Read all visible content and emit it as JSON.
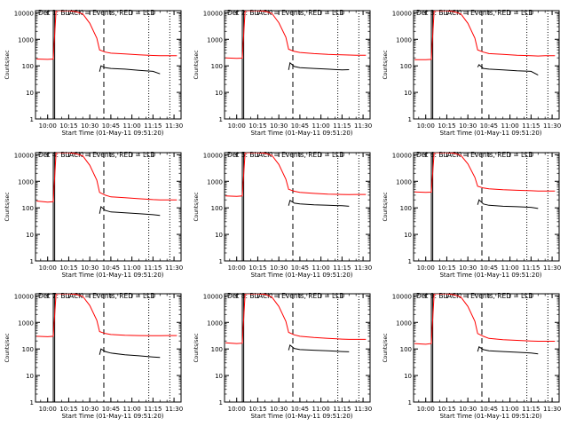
{
  "chart_data": {
    "type": "line",
    "yscale": "log",
    "ylim": [
      1,
      12000
    ],
    "ytick_labels": [
      "1",
      "10",
      "100",
      "1000",
      "10000"
    ],
    "ylabel": "Counts/sec",
    "xlabel": "Start Time (01-May-11 09:51:20)",
    "xtick_labels": [
      "10:00",
      "10:15",
      "10:30",
      "10:45",
      "11:00",
      "11:15",
      "11:30"
    ],
    "xlim": [
      "09:51:20",
      "11:35"
    ],
    "colors": {
      "events": "#000000",
      "lld": "#ff0000"
    },
    "panels": [
      {
        "title": "Det 1: BLACK = Events, RED = LLD",
        "series": [
          {
            "color": "lld",
            "x": [
              "09:52",
              "10:00",
              "10:04",
              "10:06",
              "10:10",
              "10:15",
              "10:20",
              "10:25",
              "10:30",
              "10:35",
              "10:37",
              "10:41",
              "10:45",
              "10:55",
              "11:05",
              "11:15",
              "11:20",
              "11:25",
              "11:32"
            ],
            "y": [
              180,
              175,
              180,
              12000,
              12000,
              12000,
              11000,
              9000,
              4000,
              1100,
              400,
              330,
              300,
              280,
              260,
              245,
              240,
              240,
              240
            ]
          },
          {
            "color": "events",
            "x": [
              "10:37",
              "10:38",
              "10:41",
              "10:45",
              "10:55",
              "11:05",
              "11:15",
              "11:20"
            ],
            "y": [
              60,
              100,
              85,
              80,
              75,
              68,
              62,
              50
            ]
          }
        ]
      },
      {
        "title": "Det 2: BLACK = Events, RED = LLD",
        "series": [
          {
            "color": "lld",
            "x": [
              "09:52",
              "10:00",
              "10:04",
              "10:06",
              "10:10",
              "10:15",
              "10:20",
              "10:25",
              "10:30",
              "10:35",
              "10:37",
              "10:41",
              "10:45",
              "10:55",
              "11:05",
              "11:15",
              "11:20",
              "11:25",
              "11:32"
            ],
            "y": [
              200,
              190,
              195,
              12000,
              12000,
              12000,
              11500,
              9500,
              4200,
              1200,
              420,
              350,
              320,
              290,
              270,
              260,
              255,
              250,
              250
            ]
          },
          {
            "color": "events",
            "x": [
              "10:37",
              "10:38",
              "10:41",
              "10:45",
              "10:55",
              "11:05",
              "11:15",
              "11:20"
            ],
            "y": [
              70,
              130,
              95,
              85,
              80,
              75,
              70,
              72
            ]
          }
        ]
      },
      {
        "title": "Det 3: BLACK = Events, RED = LLD",
        "series": [
          {
            "color": "lld",
            "x": [
              "09:52",
              "10:00",
              "10:04",
              "10:06",
              "10:10",
              "10:15",
              "10:20",
              "10:25",
              "10:30",
              "10:35",
              "10:37",
              "10:41",
              "10:45",
              "10:55",
              "11:05",
              "11:15",
              "11:20",
              "11:25",
              "11:32"
            ],
            "y": [
              170,
              170,
              175,
              12000,
              12000,
              12000,
              11000,
              9000,
              4000,
              1100,
              400,
              330,
              290,
              270,
              250,
              240,
              235,
              240,
              240
            ]
          },
          {
            "color": "events",
            "x": [
              "10:37",
              "10:38",
              "10:41",
              "10:45",
              "10:55",
              "11:05",
              "11:15",
              "11:20"
            ],
            "y": [
              90,
              110,
              80,
              75,
              70,
              65,
              62,
              45
            ]
          }
        ]
      },
      {
        "title": "Det 4: BLACK = Events, RED = LLD",
        "series": [
          {
            "color": "lld",
            "x": [
              "09:52",
              "10:00",
              "10:04",
              "10:06",
              "10:10",
              "10:15",
              "10:20",
              "10:25",
              "10:30",
              "10:35",
              "10:37",
              "10:41",
              "10:45",
              "10:55",
              "11:05",
              "11:15",
              "11:20",
              "11:25",
              "11:32"
            ],
            "y": [
              180,
              165,
              170,
              12000,
              12000,
              12000,
              11000,
              9000,
              4000,
              1100,
              380,
              300,
              260,
              240,
              220,
              205,
              200,
              200,
              200
            ]
          },
          {
            "color": "events",
            "x": [
              "10:37",
              "10:38",
              "10:41",
              "10:45",
              "10:55",
              "11:05",
              "11:15",
              "11:20"
            ],
            "y": [
              60,
              110,
              80,
              70,
              65,
              60,
              55,
              52
            ]
          }
        ]
      },
      {
        "title": "Det 5: BLACK = Events, RED = LLD",
        "series": [
          {
            "color": "lld",
            "x": [
              "09:52",
              "10:00",
              "10:04",
              "10:06",
              "10:10",
              "10:15",
              "10:20",
              "10:25",
              "10:30",
              "10:35",
              "10:37",
              "10:41",
              "10:45",
              "10:55",
              "11:05",
              "11:15",
              "11:20",
              "11:25",
              "11:32"
            ],
            "y": [
              280,
              270,
              280,
              12000,
              12000,
              12000,
              11500,
              9500,
              4300,
              1200,
              500,
              420,
              380,
              350,
              330,
              320,
              315,
              320,
              320
            ]
          },
          {
            "color": "events",
            "x": [
              "10:37",
              "10:38",
              "10:41",
              "10:45",
              "10:55",
              "11:05",
              "11:15",
              "11:20"
            ],
            "y": [
              120,
              190,
              150,
              140,
              130,
              125,
              120,
              115
            ]
          }
        ]
      },
      {
        "title": "Det 6: BLACK = Events, RED = LLD",
        "series": [
          {
            "color": "lld",
            "x": [
              "09:52",
              "10:00",
              "10:04",
              "10:06",
              "10:10",
              "10:15",
              "10:20",
              "10:25",
              "10:30",
              "10:35",
              "10:37",
              "10:41",
              "10:45",
              "10:55",
              "11:05",
              "11:15",
              "11:20",
              "11:25",
              "11:32"
            ],
            "y": [
              400,
              380,
              390,
              12000,
              12000,
              12000,
              11500,
              9500,
              4500,
              1400,
              650,
              560,
              520,
              480,
              460,
              440,
              430,
              430,
              430
            ]
          },
          {
            "color": "events",
            "x": [
              "10:37",
              "10:38",
              "10:41",
              "10:45",
              "10:55",
              "11:05",
              "11:15",
              "11:20"
            ],
            "y": [
              130,
              200,
              140,
              125,
              115,
              110,
              105,
              95
            ]
          }
        ]
      },
      {
        "title": "Det 7: BLACK = Events, RED = LLD",
        "series": [
          {
            "color": "lld",
            "x": [
              "09:52",
              "10:00",
              "10:04",
              "10:06",
              "10:10",
              "10:15",
              "10:20",
              "10:25",
              "10:30",
              "10:35",
              "10:37",
              "10:41",
              "10:45",
              "10:55",
              "11:05",
              "11:15",
              "11:20",
              "11:25",
              "11:32"
            ],
            "y": [
              300,
              290,
              300,
              12000,
              12000,
              12000,
              11500,
              9500,
              4300,
              1200,
              450,
              380,
              350,
              330,
              320,
              315,
              315,
              320,
              320
            ]
          },
          {
            "color": "events",
            "x": [
              "10:37",
              "10:38",
              "10:41",
              "10:45",
              "10:55",
              "11:05",
              "11:15",
              "11:20"
            ],
            "y": [
              60,
              100,
              80,
              70,
              60,
              55,
              50,
              48
            ]
          }
        ]
      },
      {
        "title": "Det 8: BLACK = Events, RED = LLD",
        "series": [
          {
            "color": "lld",
            "x": [
              "09:52",
              "10:00",
              "10:04",
              "10:06",
              "10:10",
              "10:15",
              "10:20",
              "10:25",
              "10:30",
              "10:35",
              "10:37",
              "10:41",
              "10:45",
              "10:55",
              "11:05",
              "11:15",
              "11:20",
              "11:25",
              "11:32"
            ],
            "y": [
              170,
              160,
              165,
              12000,
              12000,
              12000,
              11500,
              9000,
              4000,
              1100,
              420,
              340,
              300,
              270,
              250,
              235,
              230,
              230,
              230
            ]
          },
          {
            "color": "events",
            "x": [
              "10:37",
              "10:38",
              "10:41",
              "10:45",
              "10:55",
              "11:05",
              "11:15",
              "11:20"
            ],
            "y": [
              90,
              140,
              105,
              95,
              90,
              85,
              80,
              78
            ]
          }
        ]
      },
      {
        "title": "Det 9: BLACK = Events, RED = LLD",
        "series": [
          {
            "color": "lld",
            "x": [
              "09:52",
              "10:00",
              "10:04",
              "10:06",
              "10:10",
              "10:15",
              "10:20",
              "10:25",
              "10:30",
              "10:35",
              "10:37",
              "10:41",
              "10:45",
              "10:55",
              "11:05",
              "11:15",
              "11:20",
              "11:25",
              "11:32"
            ],
            "y": [
              160,
              150,
              160,
              12000,
              12000,
              12000,
              11000,
              9000,
              4000,
              1100,
              380,
              300,
              250,
              225,
              210,
              200,
              195,
              195,
              195
            ]
          },
          {
            "color": "events",
            "x": [
              "10:37",
              "10:38",
              "10:41",
              "10:45",
              "10:55",
              "11:05",
              "11:15",
              "11:20"
            ],
            "y": [
              80,
              120,
              95,
              85,
              80,
              75,
              70,
              65
            ]
          }
        ]
      }
    ]
  }
}
